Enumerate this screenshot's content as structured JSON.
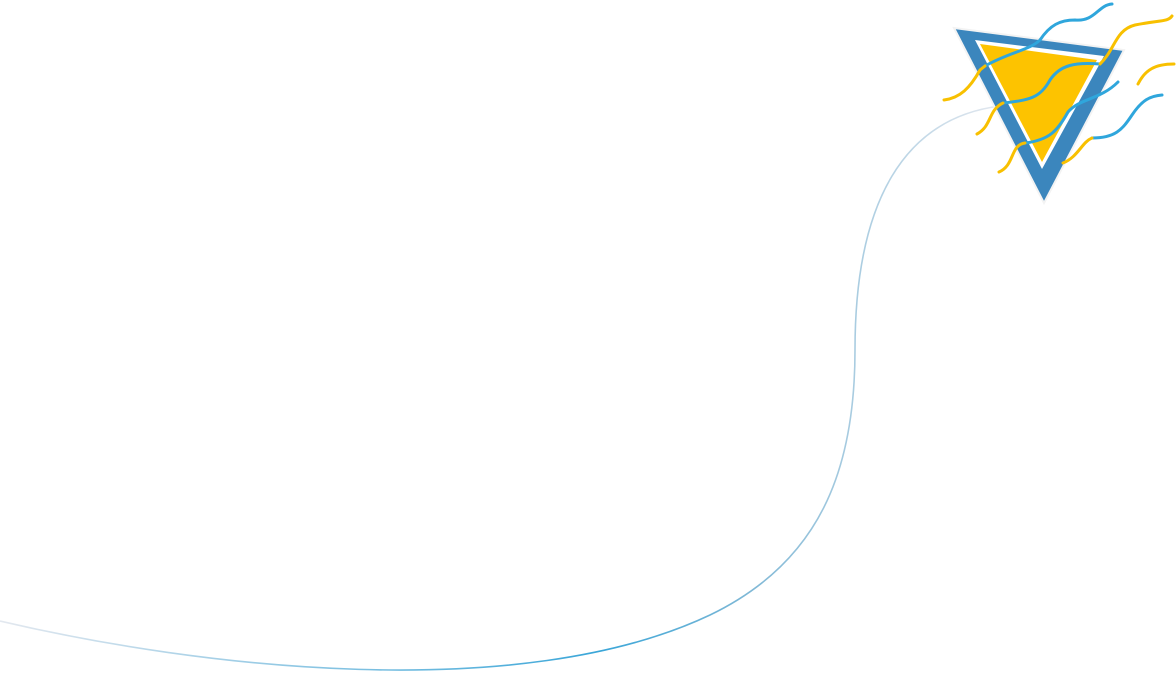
{
  "illustration": {
    "subject": "kite",
    "colors": {
      "frame": "#3b86bd",
      "sail": "#fdc300",
      "ribbon_blue": "#2fa6dc",
      "ribbon_yellow": "#f8c000",
      "string_start": "#e3e8ef",
      "string_end": "#3aa6d8"
    }
  }
}
